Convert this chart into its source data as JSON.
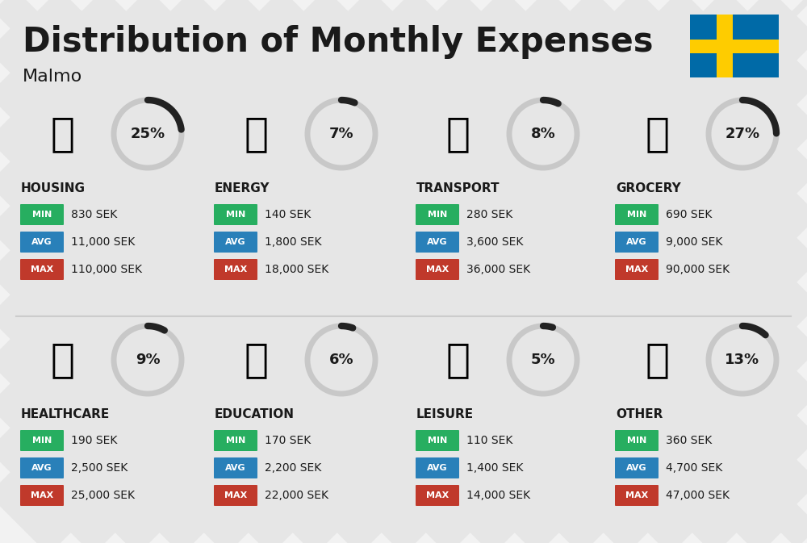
{
  "title": "Distribution of Monthly Expenses",
  "subtitle": "Malmo",
  "background_color": "#f2f2f2",
  "categories": [
    {
      "name": "HOUSING",
      "percent": 25,
      "min_val": "830 SEK",
      "avg_val": "11,000 SEK",
      "max_val": "110,000 SEK",
      "row": 0,
      "col": 0
    },
    {
      "name": "ENERGY",
      "percent": 7,
      "min_val": "140 SEK",
      "avg_val": "1,800 SEK",
      "max_val": "18,000 SEK",
      "row": 0,
      "col": 1
    },
    {
      "name": "TRANSPORT",
      "percent": 8,
      "min_val": "280 SEK",
      "avg_val": "3,600 SEK",
      "max_val": "36,000 SEK",
      "row": 0,
      "col": 2
    },
    {
      "name": "GROCERY",
      "percent": 27,
      "min_val": "690 SEK",
      "avg_val": "9,000 SEK",
      "max_val": "90,000 SEK",
      "row": 0,
      "col": 3
    },
    {
      "name": "HEALTHCARE",
      "percent": 9,
      "min_val": "190 SEK",
      "avg_val": "2,500 SEK",
      "max_val": "25,000 SEK",
      "row": 1,
      "col": 0
    },
    {
      "name": "EDUCATION",
      "percent": 6,
      "min_val": "170 SEK",
      "avg_val": "2,200 SEK",
      "max_val": "22,000 SEK",
      "row": 1,
      "col": 1
    },
    {
      "name": "LEISURE",
      "percent": 5,
      "min_val": "110 SEK",
      "avg_val": "1,400 SEK",
      "max_val": "14,000 SEK",
      "row": 1,
      "col": 2
    },
    {
      "name": "OTHER",
      "percent": 13,
      "min_val": "360 SEK",
      "avg_val": "4,700 SEK",
      "max_val": "47,000 SEK",
      "row": 1,
      "col": 3
    }
  ],
  "min_color": "#27ae60",
  "avg_color": "#2980b9",
  "max_color": "#c0392b",
  "text_color": "#1a1a1a",
  "arc_color": "#222222",
  "arc_bg_color": "#c8c8c8",
  "stripe_color": "#d8d8d8",
  "divider_color": "#cccccc",
  "flag_blue": "#006AA7",
  "flag_yellow": "#FECC00",
  "title_fontsize": 30,
  "subtitle_fontsize": 16,
  "cat_fontsize": 11,
  "badge_fontsize": 8,
  "val_fontsize": 10,
  "pct_fontsize": 13
}
